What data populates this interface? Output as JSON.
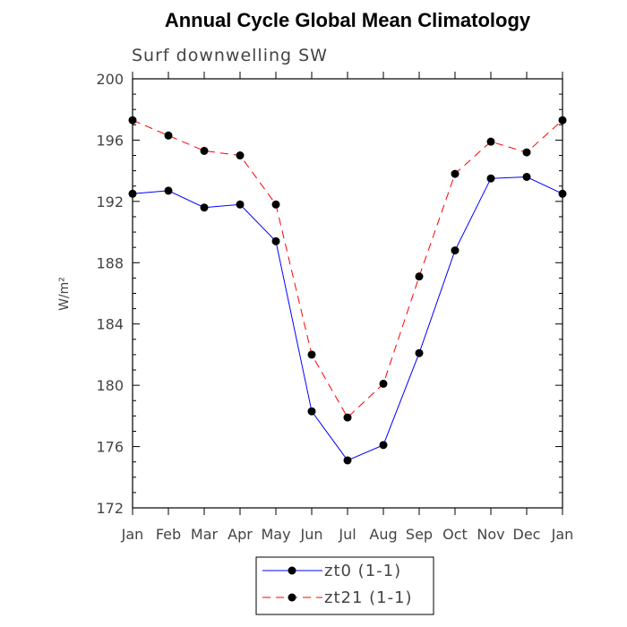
{
  "chart_data": {
    "type": "line",
    "title": "Annual Cycle Global Mean Climatology",
    "subtitle": "Surf downwelling SW",
    "ylabel": "W/m²",
    "xlabel": "",
    "categories": [
      "Jan",
      "Feb",
      "Mar",
      "Apr",
      "May",
      "Jun",
      "Jul",
      "Aug",
      "Sep",
      "Oct",
      "Nov",
      "Dec",
      "Jan"
    ],
    "ylim": [
      172,
      200
    ],
    "yticks": [
      172,
      176,
      180,
      184,
      188,
      192,
      196,
      200
    ],
    "grid": false,
    "legend_position": "bottom",
    "series": [
      {
        "name": "zt0 (1-1)",
        "color": "#0000ff",
        "line_style": "solid",
        "marker": "filled-circle",
        "values": [
          192.5,
          192.7,
          191.6,
          191.8,
          189.4,
          178.3,
          175.1,
          176.1,
          182.1,
          188.8,
          193.5,
          193.6,
          192.5
        ]
      },
      {
        "name": "zt21 (1-1)",
        "color": "#ff0000",
        "line_style": "dashed",
        "marker": "filled-circle",
        "values": [
          197.3,
          196.3,
          195.3,
          195.0,
          191.8,
          182.0,
          177.9,
          180.1,
          187.1,
          193.8,
          195.9,
          195.2,
          197.3
        ]
      }
    ]
  }
}
